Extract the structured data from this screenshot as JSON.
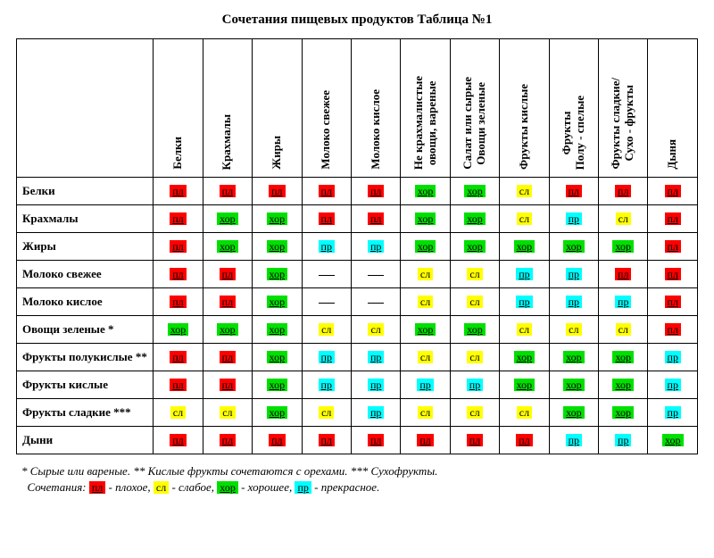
{
  "title": "Сочетания пищевых продуктов Таблица №1",
  "codes": {
    "pl": {
      "label": "пл",
      "bg": "#ff0000",
      "fg": "#000000",
      "underline": true
    },
    "sl": {
      "label": "сл",
      "bg": "#ffff00",
      "fg": "#000000",
      "underline": false
    },
    "hor": {
      "label": "хор",
      "bg": "#00e000",
      "fg": "#000000",
      "underline": true
    },
    "pr": {
      "label": "пр",
      "bg": "#00ffff",
      "fg": "#000000",
      "underline": true
    },
    "dash": {
      "label": "—"
    }
  },
  "columns": [
    "Белки",
    "Крахмалы",
    "Жиры",
    "Молоко свежее",
    "Молоко кислое",
    "Не крахмалистые\nовощи, вареные",
    "Салат или сырые\nОвощи зеленые",
    "Фрукты кислые",
    "Фрукты\nПолу - спелые",
    "Фрукты сладкие/\nСухо - фрукты",
    "Дыня"
  ],
  "rows": [
    {
      "label": "Белки",
      "cells": [
        "pl",
        "pl",
        "pl",
        "pl",
        "pl",
        "hor",
        "hor",
        "sl",
        "pl",
        "pl",
        "pl"
      ]
    },
    {
      "label": "Крахмалы",
      "cells": [
        "pl",
        "hor",
        "hor",
        "pl",
        "pl",
        "hor",
        "hor",
        "sl",
        "pr",
        "sl",
        "pl"
      ]
    },
    {
      "label": "Жиры",
      "cells": [
        "pl",
        "hor",
        "hor",
        "pr",
        "pr",
        "hor",
        "hor",
        "hor",
        "hor",
        "hor",
        "pl"
      ]
    },
    {
      "label": "Молоко свежее",
      "cells": [
        "pl",
        "pl",
        "hor",
        "dash",
        "dash",
        "sl",
        "sl",
        "pr",
        "pr",
        "pl",
        "pl"
      ]
    },
    {
      "label": "Молоко кислое",
      "cells": [
        "pl",
        "pl",
        "hor",
        "dash",
        "dash",
        "sl",
        "sl",
        "pr",
        "pr",
        "pr",
        "pl"
      ]
    },
    {
      "label": "Овощи зеленые *",
      "cells": [
        "hor",
        "hor",
        "hor",
        "sl",
        "sl",
        "hor",
        "hor",
        "sl",
        "sl",
        "sl",
        "pl"
      ]
    },
    {
      "label": "Фрукты полукислые **",
      "cells": [
        "pl",
        "pl",
        "hor",
        "pr",
        "pr",
        "sl",
        "sl",
        "hor",
        "hor",
        "hor",
        "pr"
      ]
    },
    {
      "label": "Фрукты кислые",
      "cells": [
        "pl",
        "pl",
        "hor",
        "pr",
        "pr",
        "pr",
        "pr",
        "hor",
        "hor",
        "hor",
        "pr"
      ]
    },
    {
      "label": "Фрукты сладкие ***",
      "cells": [
        "sl",
        "sl",
        "hor",
        "sl",
        "pr",
        "sl",
        "sl",
        "sl",
        "hor",
        "hor",
        "pr"
      ]
    },
    {
      "label": "Дыни",
      "cells": [
        "pl",
        "pl",
        "pl",
        "pl",
        "pl",
        "pl",
        "pl",
        "pl",
        "pr",
        "pr",
        "hor"
      ]
    }
  ],
  "footnote_line1": "* Сырые или вареные. ** Кислые фрукты сочетаются с орехами. *** Сухофрукты.",
  "legend": {
    "prefix": "Сочетания: ",
    "items": [
      {
        "code": "pl",
        "desc": " - плохое, "
      },
      {
        "code": "sl",
        "desc": " - слабое, "
      },
      {
        "code": "hor",
        "desc": " - хорошее, "
      },
      {
        "code": "pr",
        "desc": " - прекрасное."
      }
    ]
  }
}
